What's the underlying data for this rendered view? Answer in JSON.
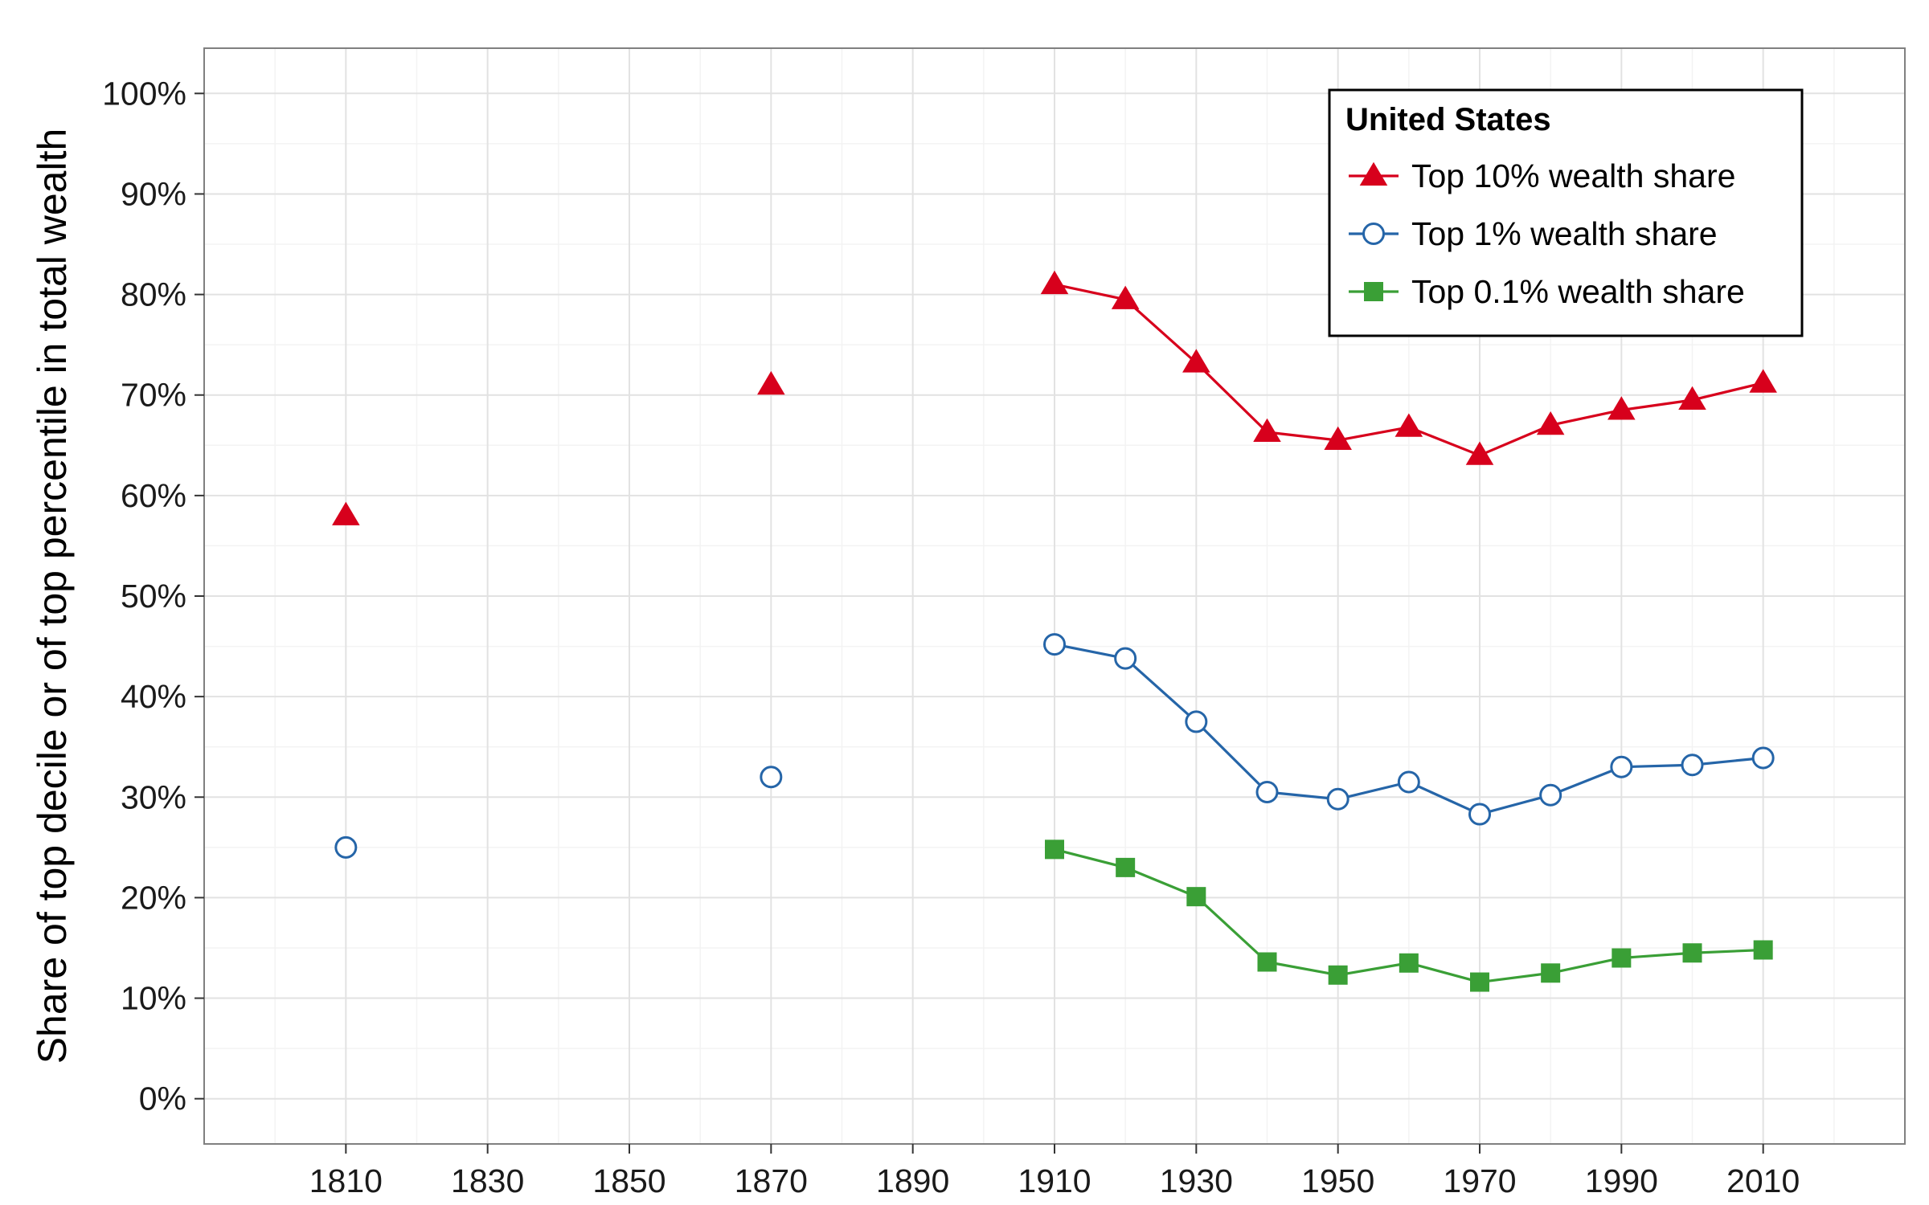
{
  "chart_data": {
    "type": "line",
    "title": "",
    "xlabel": "",
    "ylabel": "Share of top decile or of top percentile in total wealth",
    "x_ticks": [
      "1810",
      "1830",
      "1850",
      "1870",
      "1890",
      "1910",
      "1930",
      "1950",
      "1970",
      "1990",
      "2010"
    ],
    "y_ticks": [
      "0%",
      "10%",
      "20%",
      "30%",
      "40%",
      "50%",
      "60%",
      "70%",
      "80%",
      "90%",
      "100%"
    ],
    "xlim": [
      1790,
      2030
    ],
    "ylim": [
      -0.045,
      1.045
    ],
    "grid": true,
    "legend": {
      "title": "United States",
      "position": "top-right"
    },
    "series": [
      {
        "name": "Top 10% wealth share",
        "color": "#d7001c",
        "marker": "triangle",
        "standalone": [
          [
            1810,
            0.58
          ],
          [
            1870,
            0.71
          ]
        ],
        "points": [
          [
            1910,
            0.81
          ],
          [
            1920,
            0.795
          ],
          [
            1930,
            0.732
          ],
          [
            1940,
            0.663
          ],
          [
            1950,
            0.655
          ],
          [
            1960,
            0.668
          ],
          [
            1970,
            0.64
          ],
          [
            1980,
            0.67
          ],
          [
            1990,
            0.685
          ],
          [
            2000,
            0.695
          ],
          [
            2010,
            0.712
          ]
        ]
      },
      {
        "name": "Top 1% wealth share",
        "color": "#2565a8",
        "marker": "circle-open",
        "standalone": [
          [
            1810,
            0.25
          ],
          [
            1870,
            0.32
          ]
        ],
        "points": [
          [
            1910,
            0.452
          ],
          [
            1920,
            0.438
          ],
          [
            1930,
            0.375
          ],
          [
            1940,
            0.305
          ],
          [
            1950,
            0.298
          ],
          [
            1960,
            0.315
          ],
          [
            1970,
            0.283
          ],
          [
            1980,
            0.302
          ],
          [
            1990,
            0.33
          ],
          [
            2000,
            0.332
          ],
          [
            2010,
            0.339
          ]
        ]
      },
      {
        "name": "Top 0.1% wealth share",
        "color": "#3a9f36",
        "marker": "square",
        "standalone": [],
        "points": [
          [
            1910,
            0.248
          ],
          [
            1920,
            0.23
          ],
          [
            1930,
            0.201
          ],
          [
            1940,
            0.136
          ],
          [
            1950,
            0.123
          ],
          [
            1960,
            0.135
          ],
          [
            1970,
            0.116
          ],
          [
            1980,
            0.125
          ],
          [
            1990,
            0.14
          ],
          [
            2000,
            0.145
          ],
          [
            2010,
            0.148
          ]
        ]
      }
    ]
  }
}
